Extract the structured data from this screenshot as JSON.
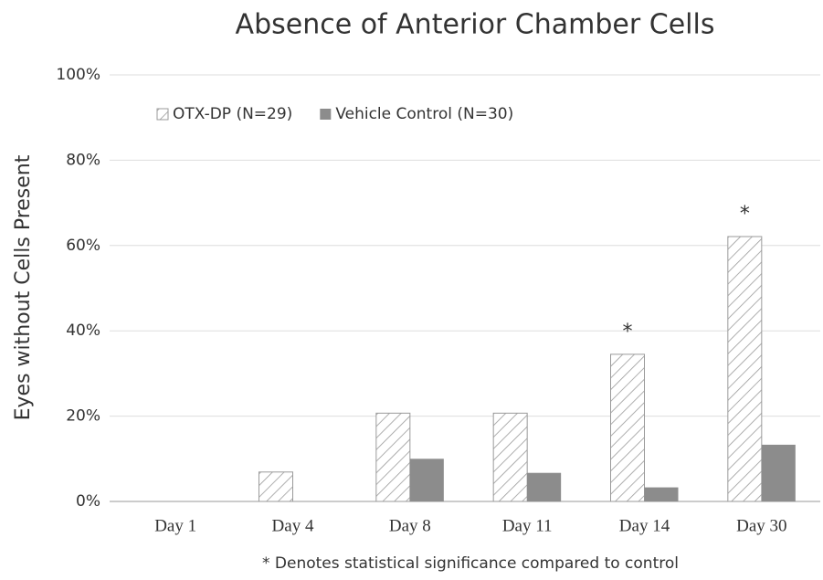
{
  "chart_data": {
    "type": "bar",
    "title": "Absence of Anterior Chamber Cells",
    "ylabel": "Eyes without Cells Present",
    "footnote": "* Denotes statistical significance compared to control",
    "categories": [
      "Day 1",
      "Day 4",
      "Day 8",
      "Day 11",
      "Day 14",
      "Day 30"
    ],
    "series": [
      {
        "name": "OTX-DP (N=29)",
        "color": "#9a9a9a",
        "hatch": true,
        "values": [
          0,
          6.9,
          20.7,
          20.7,
          34.5,
          62.1
        ]
      },
      {
        "name": "Vehicle Control (N=30)",
        "color": "#8c8c8c",
        "hatch": false,
        "values": [
          0,
          0,
          10,
          6.7,
          3.3,
          13.3
        ]
      }
    ],
    "annotations": [
      {
        "text": "*",
        "x": "Day 14"
      },
      {
        "text": "*",
        "x": "Day 30"
      }
    ],
    "ylim": [
      0,
      100
    ],
    "yticks": [
      {
        "value": 0,
        "label": "0%"
      },
      {
        "value": 20,
        "label": "20%"
      },
      {
        "value": 40,
        "label": "40%"
      },
      {
        "value": 60,
        "label": "60%"
      },
      {
        "value": 80,
        "label": "80%"
      },
      {
        "value": 100,
        "label": "100%"
      }
    ],
    "grid": true,
    "legend": "top-left"
  }
}
